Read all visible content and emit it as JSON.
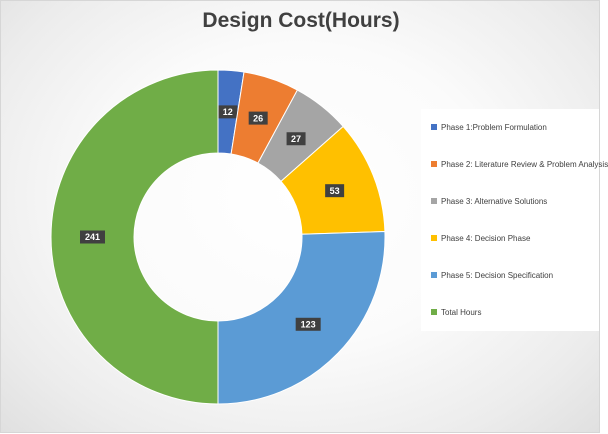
{
  "chart_data": {
    "type": "donut",
    "title": "Design Cost(Hours)",
    "categories": [
      "Phase 1:Problem Formulation",
      "Phase 2: Literature Review & Problem Analysis",
      "Phase 3: Alternative Solutions",
      "Phase 4: Decision Phase",
      "Phase 5: Decision Specification",
      "Total Hours"
    ],
    "values": [
      12,
      26,
      27,
      53,
      123,
      241
    ],
    "colors": [
      "#4472c4",
      "#ed7d31",
      "#a5a5a5",
      "#ffc000",
      "#5b9bd5",
      "#70ad47"
    ],
    "legend_position": "right",
    "data_labels": true
  }
}
